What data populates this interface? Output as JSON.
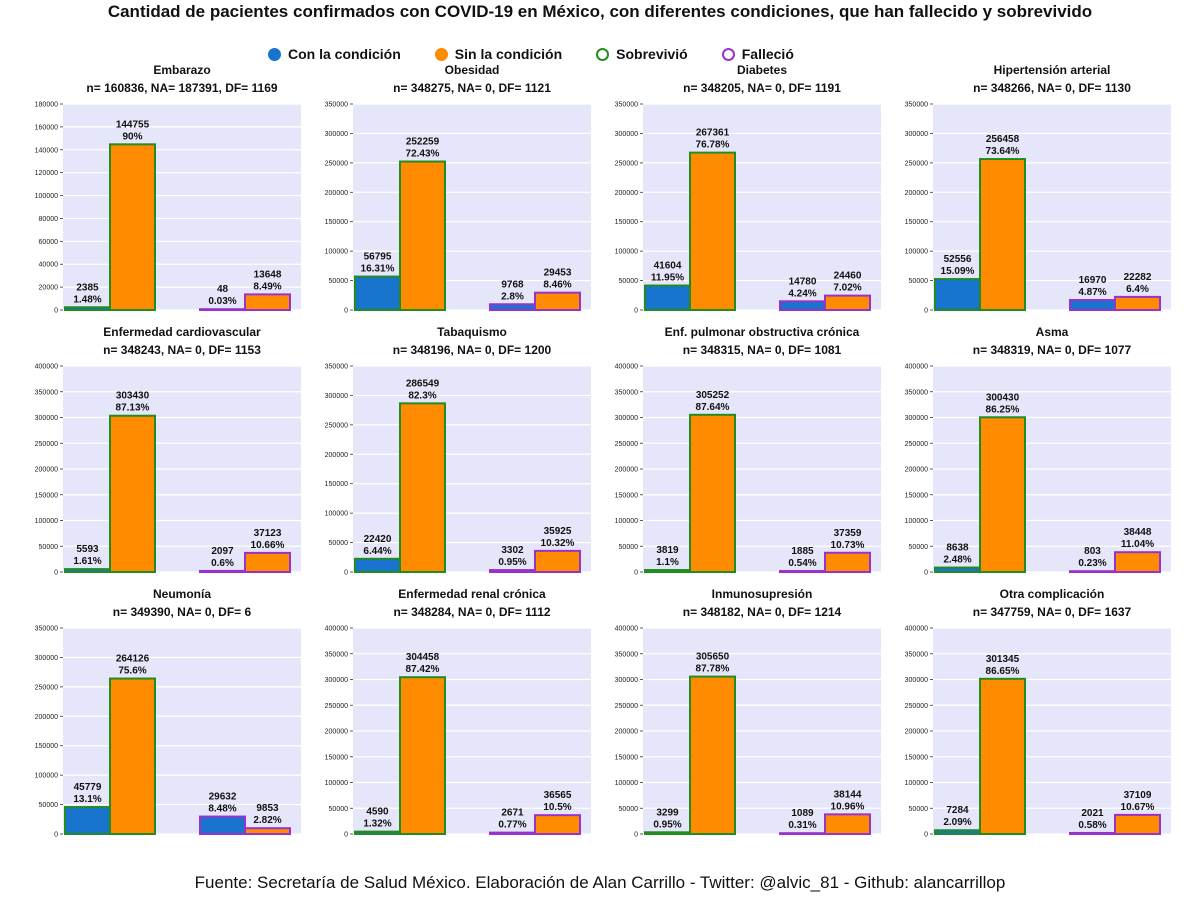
{
  "title": "Cantidad de pacientes confirmados con COVID-19 en México, con diferentes condiciones, que han fallecido y sobrevivido",
  "legend": [
    {
      "label": "Con la condición",
      "color": "#1874CD",
      "shape": "filled-circle"
    },
    {
      "label": "Sin la condición",
      "color": "#FF8C00",
      "shape": "filled-circle"
    },
    {
      "label": "Sobrevivió",
      "color": "#228B22",
      "shape": "hollow-circle"
    },
    {
      "label": "Falleció",
      "color": "#9932CC",
      "shape": "hollow-circle"
    }
  ],
  "source": "Fuente: Secretaría de Salud México. Elaboración de Alan Carrillo - Twitter: @alvic_81 - Github: alancarrillop",
  "colors": {
    "con": "#1874CD",
    "sin": "#FF8C00",
    "sobrevivio": "#228B22",
    "fallecio": "#9932CC",
    "panel_bg": "#E6E6FA"
  },
  "chart_data": [
    {
      "type": "bar",
      "title": "Embarazo",
      "subtitle": "n= 160836, NA= 187391, DF= 1169",
      "ylim": [
        0,
        180000
      ],
      "yticks": [
        0,
        20000,
        40000,
        60000,
        80000,
        100000,
        120000,
        140000,
        160000,
        180000
      ],
      "groups": [
        "Sobrevivió",
        "Falleció"
      ],
      "series": [
        {
          "name": "Con la condición",
          "values": [
            2385,
            48
          ],
          "labels": [
            "2385\n1.48%",
            "48\n0.03%"
          ]
        },
        {
          "name": "Sin la condición",
          "values": [
            144755,
            13648
          ],
          "labels": [
            "144755\n90%",
            "13648\n8.49%"
          ]
        }
      ]
    },
    {
      "type": "bar",
      "title": "Obesidad",
      "subtitle": "n= 348275, NA= 0, DF= 1121",
      "ylim": [
        0,
        350000
      ],
      "yticks": [
        0,
        50000,
        100000,
        150000,
        200000,
        250000,
        300000,
        350000
      ],
      "groups": [
        "Sobrevivió",
        "Falleció"
      ],
      "series": [
        {
          "name": "Con la condición",
          "values": [
            56795,
            9768
          ],
          "labels": [
            "56795\n16.31%",
            "9768\n2.8%"
          ]
        },
        {
          "name": "Sin la condición",
          "values": [
            252259,
            29453
          ],
          "labels": [
            "252259\n72.43%",
            "29453\n8.46%"
          ]
        }
      ]
    },
    {
      "type": "bar",
      "title": "Diabetes",
      "subtitle": "n= 348205, NA= 0, DF= 1191",
      "ylim": [
        0,
        350000
      ],
      "yticks": [
        0,
        50000,
        100000,
        150000,
        200000,
        250000,
        300000,
        350000
      ],
      "groups": [
        "Sobrevivió",
        "Falleció"
      ],
      "series": [
        {
          "name": "Con la condición",
          "values": [
            41604,
            14780
          ],
          "labels": [
            "41604\n11.95%",
            "14780\n4.24%"
          ]
        },
        {
          "name": "Sin la condición",
          "values": [
            267361,
            24460
          ],
          "labels": [
            "267361\n76.78%",
            "24460\n7.02%"
          ]
        }
      ]
    },
    {
      "type": "bar",
      "title": "Hipertensión arterial",
      "subtitle": "n= 348266, NA= 0, DF= 1130",
      "ylim": [
        0,
        350000
      ],
      "yticks": [
        0,
        50000,
        100000,
        150000,
        200000,
        250000,
        300000,
        350000
      ],
      "groups": [
        "Sobrevivió",
        "Falleció"
      ],
      "series": [
        {
          "name": "Con la condición",
          "values": [
            52556,
            16970
          ],
          "labels": [
            "52556\n15.09%",
            "16970\n4.87%"
          ]
        },
        {
          "name": "Sin la condición",
          "values": [
            256458,
            22282
          ],
          "labels": [
            "256458\n73.64%",
            "22282\n6.4%"
          ]
        }
      ]
    },
    {
      "type": "bar",
      "title": "Enfermedad cardiovascular",
      "subtitle": "n= 348243, NA= 0, DF= 1153",
      "ylim": [
        0,
        400000
      ],
      "yticks": [
        0,
        50000,
        100000,
        150000,
        200000,
        250000,
        300000,
        350000,
        400000
      ],
      "groups": [
        "Sobrevivió",
        "Falleció"
      ],
      "series": [
        {
          "name": "Con la condición",
          "values": [
            5593,
            2097
          ],
          "labels": [
            "5593\n1.61%",
            "2097\n0.6%"
          ]
        },
        {
          "name": "Sin la condición",
          "values": [
            303430,
            37123
          ],
          "labels": [
            "303430\n87.13%",
            "37123\n10.66%"
          ]
        }
      ]
    },
    {
      "type": "bar",
      "title": "Tabaquismo",
      "subtitle": "n= 348196, NA= 0, DF= 1200",
      "ylim": [
        0,
        350000
      ],
      "yticks": [
        0,
        50000,
        100000,
        150000,
        200000,
        250000,
        300000,
        350000
      ],
      "groups": [
        "Sobrevivió",
        "Falleció"
      ],
      "series": [
        {
          "name": "Con la condición",
          "values": [
            22420,
            3302
          ],
          "labels": [
            "22420\n6.44%",
            "3302\n0.95%"
          ]
        },
        {
          "name": "Sin la condición",
          "values": [
            286549,
            35925
          ],
          "labels": [
            "286549\n82.3%",
            "35925\n10.32%"
          ]
        }
      ]
    },
    {
      "type": "bar",
      "title": "Enf. pulmonar obstructiva crónica",
      "subtitle": "n= 348315, NA= 0, DF= 1081",
      "ylim": [
        0,
        400000
      ],
      "yticks": [
        0,
        50000,
        100000,
        150000,
        200000,
        250000,
        300000,
        350000,
        400000
      ],
      "groups": [
        "Sobrevivió",
        "Falleció"
      ],
      "series": [
        {
          "name": "Con la condición",
          "values": [
            3819,
            1885
          ],
          "labels": [
            "3819\n1.1%",
            "1885\n0.54%"
          ]
        },
        {
          "name": "Sin la condición",
          "values": [
            305252,
            37359
          ],
          "labels": [
            "305252\n87.64%",
            "37359\n10.73%"
          ]
        }
      ]
    },
    {
      "type": "bar",
      "title": "Asma",
      "subtitle": "n= 348319, NA= 0, DF= 1077",
      "ylim": [
        0,
        400000
      ],
      "yticks": [
        0,
        50000,
        100000,
        150000,
        200000,
        250000,
        300000,
        350000,
        400000
      ],
      "groups": [
        "Sobrevivió",
        "Falleció"
      ],
      "series": [
        {
          "name": "Con la condición",
          "values": [
            8638,
            803
          ],
          "labels": [
            "8638\n2.48%",
            "803\n0.23%"
          ]
        },
        {
          "name": "Sin la condición",
          "values": [
            300430,
            38448
          ],
          "labels": [
            "300430\n86.25%",
            "38448\n11.04%"
          ]
        }
      ]
    },
    {
      "type": "bar",
      "title": "Neumonía",
      "subtitle": "n= 349390, NA= 0, DF= 6",
      "ylim": [
        0,
        350000
      ],
      "yticks": [
        0,
        50000,
        100000,
        150000,
        200000,
        250000,
        300000,
        350000
      ],
      "groups": [
        "Sobrevivió",
        "Falleció"
      ],
      "series": [
        {
          "name": "Con la condición",
          "values": [
            45779,
            29632
          ],
          "labels": [
            "45779\n13.1%",
            "29632\n8.48%"
          ]
        },
        {
          "name": "Sin la condición",
          "values": [
            264126,
            9853
          ],
          "labels": [
            "264126\n75.6%",
            "9853\n2.82%"
          ]
        }
      ]
    },
    {
      "type": "bar",
      "title": "Enfermedad renal crónica",
      "subtitle": "n= 348284, NA= 0, DF= 1112",
      "ylim": [
        0,
        400000
      ],
      "yticks": [
        0,
        50000,
        100000,
        150000,
        200000,
        250000,
        300000,
        350000,
        400000
      ],
      "groups": [
        "Sobrevivió",
        "Falleció"
      ],
      "series": [
        {
          "name": "Con la condición",
          "values": [
            4590,
            2671
          ],
          "labels": [
            "4590\n1.32%",
            "2671\n0.77%"
          ]
        },
        {
          "name": "Sin la condición",
          "values": [
            304458,
            36565
          ],
          "labels": [
            "304458\n87.42%",
            "36565\n10.5%"
          ]
        }
      ]
    },
    {
      "type": "bar",
      "title": "Inmunosupresión",
      "subtitle": "n= 348182, NA= 0, DF= 1214",
      "ylim": [
        0,
        400000
      ],
      "yticks": [
        0,
        50000,
        100000,
        150000,
        200000,
        250000,
        300000,
        350000,
        400000
      ],
      "groups": [
        "Sobrevivió",
        "Falleció"
      ],
      "series": [
        {
          "name": "Con la condición",
          "values": [
            3299,
            1089
          ],
          "labels": [
            "3299\n0.95%",
            "1089\n0.31%"
          ]
        },
        {
          "name": "Sin la condición",
          "values": [
            305650,
            38144
          ],
          "labels": [
            "305650\n87.78%",
            "38144\n10.96%"
          ]
        }
      ]
    },
    {
      "type": "bar",
      "title": "Otra complicación",
      "subtitle": "n= 347759, NA= 0, DF= 1637",
      "ylim": [
        0,
        400000
      ],
      "yticks": [
        0,
        50000,
        100000,
        150000,
        200000,
        250000,
        300000,
        350000,
        400000
      ],
      "groups": [
        "Sobrevivió",
        "Falleció"
      ],
      "series": [
        {
          "name": "Con la condición",
          "values": [
            7284,
            2021
          ],
          "labels": [
            "7284\n2.09%",
            "2021\n0.58%"
          ]
        },
        {
          "name": "Sin la condición",
          "values": [
            301345,
            37109
          ],
          "labels": [
            "301345\n86.65%",
            "37109\n10.67%"
          ]
        }
      ]
    }
  ]
}
